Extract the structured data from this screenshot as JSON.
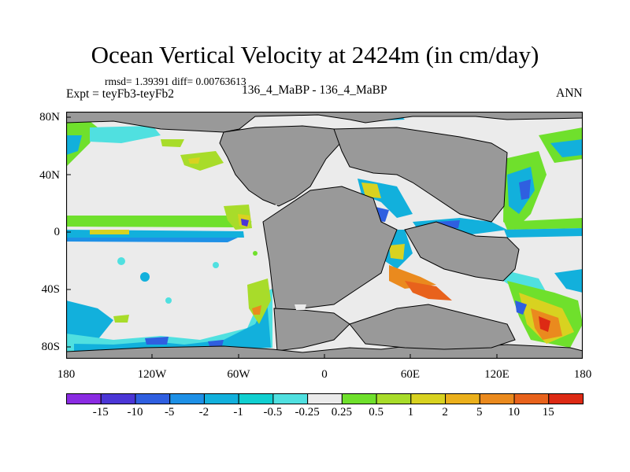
{
  "title": "Ocean Vertical Velocity at 2424m (in cm/day)",
  "stats_line": "rmsd= 1.39391 diff= 0.00763613",
  "experiment_label": "Expt = teyFb3-teyFb2",
  "comparison_label": "136_4_MaBP - 136_4_MaBP",
  "period_label": "ANN",
  "lat_ticks": [
    "80N",
    "40N",
    "0",
    "40S",
    "80S"
  ],
  "lon_ticks": [
    "180",
    "120W",
    "60W",
    "0",
    "60E",
    "120E",
    "180"
  ],
  "colorbar": {
    "levels": [
      "-15",
      "-10",
      "-5",
      "-2",
      "-1",
      "-0.5",
      "-0.25",
      "0.25",
      "0.5",
      "1",
      "2",
      "5",
      "10",
      "15"
    ],
    "colors": [
      "#8a2be2",
      "#4b36d6",
      "#2f5fe0",
      "#1e90e6",
      "#12b0dc",
      "#10cfd0",
      "#50e0e0",
      "#ebebeb",
      "#6fe02c",
      "#a8dc2a",
      "#d8d220",
      "#ebb01c",
      "#ea8a1e",
      "#e8621c",
      "#dd2a14"
    ]
  },
  "map": {
    "colors": {
      "land": "#999999",
      "ocean_neutral": "#ebebeb",
      "coastline": "#000000"
    }
  }
}
